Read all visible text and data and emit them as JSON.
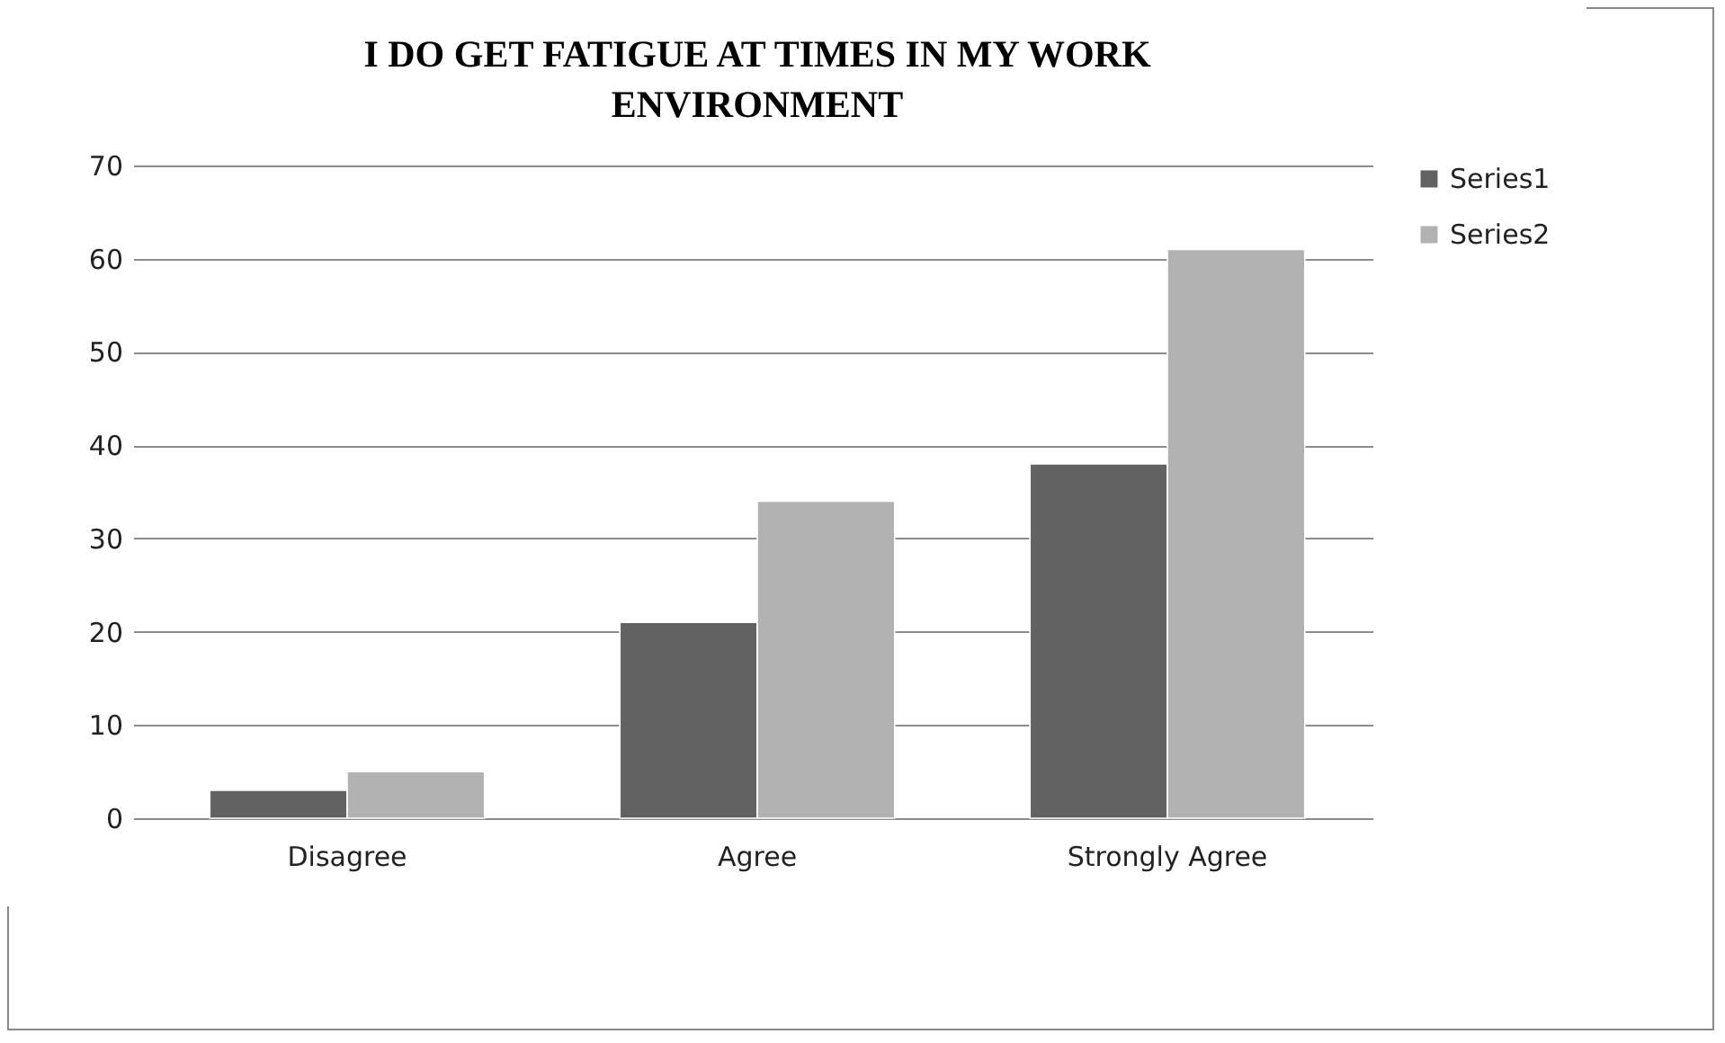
{
  "chart_data": {
    "type": "bar",
    "title": "I DO GET  FATIGUE AT  TIMES  IN  MY WORK ENVIRONMENT",
    "categories": [
      "Disagree",
      "Agree",
      "Strongly Agree"
    ],
    "series": [
      {
        "name": "Series1",
        "color": "#626262",
        "values": [
          3,
          21,
          38
        ]
      },
      {
        "name": "Series2",
        "color": "#b2b2b2",
        "values": [
          5,
          34,
          61
        ]
      }
    ],
    "ylim": [
      0,
      70
    ],
    "yticks": [
      0,
      10,
      20,
      30,
      40,
      50,
      60,
      70
    ],
    "grid": "y",
    "legend": "right"
  }
}
